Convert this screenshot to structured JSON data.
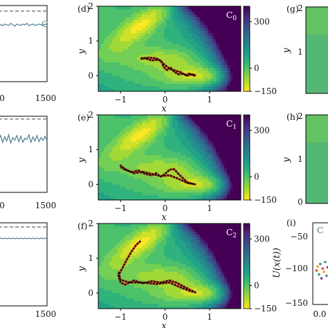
{
  "chart_data": [
    {
      "type": "line",
      "panel": "left-top",
      "title": "",
      "xlabel": "",
      "ylabel": "",
      "xlim": [
        0,
        1500
      ],
      "x_ticks": [
        "0",
        "1500"
      ],
      "annotation": "C",
      "series": [
        {
          "role": "trace",
          "color": "#4f7f8c",
          "values": [
            0.78,
            0.8,
            0.79,
            0.81,
            0.8,
            0.79,
            0.82,
            0.8,
            0.78,
            0.81,
            0.8,
            0.79,
            0.81,
            0.8,
            0.82,
            0.79,
            0.8,
            0.81,
            0.79,
            0.8,
            0.81,
            0.8,
            0.79,
            0.81,
            0.8
          ]
        },
        {
          "role": "reference",
          "style": "dashed",
          "color": "#666666",
          "value": 0.93
        }
      ]
    },
    {
      "type": "line",
      "panel": "left-middle",
      "title": "",
      "xlabel": "",
      "ylabel": "",
      "xlim": [
        0,
        1500
      ],
      "x_ticks": [
        "0",
        "1500"
      ],
      "series": [
        {
          "role": "trace",
          "color": "#4f7f8c",
          "values": [
            0.74,
            0.8,
            0.7,
            0.78,
            0.72,
            0.81,
            0.69,
            0.77,
            0.73,
            0.8,
            0.71,
            0.79,
            0.7,
            0.76,
            0.74,
            0.81,
            0.7,
            0.78,
            0.72,
            0.8,
            0.71,
            0.77,
            0.73,
            0.79,
            0.72
          ]
        },
        {
          "role": "reference",
          "style": "dashed",
          "color": "#666666",
          "value": 0.93
        }
      ]
    },
    {
      "type": "line",
      "panel": "left-bottom",
      "title": "",
      "xlabel": "",
      "ylabel": "",
      "xlim": [
        0,
        1500
      ],
      "x_ticks": [
        "0",
        "1500"
      ],
      "series": [
        {
          "role": "trace",
          "color": "#4f7f8c",
          "values": [
            0.86,
            0.87,
            0.86,
            0.87,
            0.86,
            0.87,
            0.86,
            0.87,
            0.86,
            0.87,
            0.86,
            0.87,
            0.86,
            0.87,
            0.86,
            0.87,
            0.86,
            0.87,
            0.86,
            0.87,
            0.86,
            0.87,
            0.86,
            0.87,
            0.86
          ]
        },
        {
          "role": "reference",
          "style": "dashed",
          "color": "#666666",
          "value": 0.93
        }
      ]
    },
    {
      "type": "heatmap",
      "panel_label": "(d)",
      "annotation": "C0",
      "xlabel": "x",
      "ylabel": "y",
      "xlim": [
        -1.5,
        1.7
      ],
      "ylim": [
        -0.45,
        2.0
      ],
      "x_ticks": [
        "−1",
        "0",
        "1"
      ],
      "y_ticks": [
        "0",
        "1",
        "2"
      ],
      "colorbar": {
        "min": -150,
        "max": 400,
        "ticks": [
          "300",
          "0",
          "−150"
        ],
        "colors": [
          "#fde725",
          "#b5de2b",
          "#6ece58",
          "#35b779",
          "#1f9e89",
          "#26828e",
          "#31688e",
          "#3e4989",
          "#482878",
          "#440154"
        ]
      },
      "trajectory": {
        "x": [
          -0.55,
          -0.35,
          -0.2,
          -0.08,
          -0.05,
          0.0,
          0.05,
          0.12,
          0.2,
          0.3,
          0.4,
          0.5,
          0.6,
          0.68,
          0.65,
          0.55,
          0.45,
          0.35,
          0.25,
          0.1,
          -0.05,
          -0.15,
          -0.3,
          -0.45,
          -0.55
        ],
        "y": [
          0.5,
          0.52,
          0.5,
          0.42,
          0.3,
          0.2,
          0.16,
          0.24,
          0.12,
          0.04,
          0.06,
          0.0,
          0.04,
          0.02,
          0.0,
          0.06,
          0.02,
          0.1,
          0.14,
          0.2,
          0.36,
          0.46,
          0.44,
          0.5,
          0.48
        ]
      }
    },
    {
      "type": "heatmap",
      "panel_label": "(e)",
      "annotation": "C1",
      "xlabel": "x",
      "ylabel": "y",
      "xlim": [
        -1.5,
        1.7
      ],
      "ylim": [
        -0.45,
        2.0
      ],
      "x_ticks": [
        "−1",
        "0",
        "1"
      ],
      "y_ticks": [
        "0",
        "1",
        "2"
      ],
      "colorbar": {
        "min": -150,
        "max": 400,
        "ticks": [
          "300",
          "0",
          "−150"
        ],
        "colors": [
          "#fde725",
          "#b5de2b",
          "#6ece58",
          "#35b779",
          "#1f9e89",
          "#26828e",
          "#31688e",
          "#3e4989",
          "#482878",
          "#440154"
        ]
      },
      "trajectory": {
        "x": [
          -1.0,
          -0.9,
          -0.75,
          -0.6,
          -0.45,
          -0.3,
          -0.2,
          -0.1,
          0.0,
          0.1,
          0.2,
          0.3,
          0.4,
          0.5,
          0.6,
          0.68,
          0.5,
          0.3,
          0.1,
          -0.1,
          -0.3,
          -0.5,
          -0.7,
          -0.9,
          -1.02
        ],
        "y": [
          0.5,
          0.42,
          0.35,
          0.4,
          0.3,
          0.26,
          0.32,
          0.22,
          0.3,
          0.42,
          0.44,
          0.3,
          0.18,
          0.06,
          0.02,
          0.0,
          0.04,
          0.16,
          0.26,
          0.24,
          0.3,
          0.36,
          0.32,
          0.44,
          0.56
        ]
      }
    },
    {
      "type": "heatmap",
      "panel_label": "(f)",
      "annotation": "C2",
      "xlabel": "x",
      "ylabel": "y",
      "xlim": [
        -1.5,
        1.7
      ],
      "ylim": [
        -0.45,
        2.0
      ],
      "x_ticks": [
        "−1",
        "0",
        "1"
      ],
      "y_ticks": [
        "0",
        "1",
        "2"
      ],
      "colorbar": {
        "min": -150,
        "max": 400,
        "ticks": [
          "300",
          "0",
          "−150"
        ],
        "colors": [
          "#fde725",
          "#b5de2b",
          "#6ece58",
          "#35b779",
          "#1f9e89",
          "#26828e",
          "#31688e",
          "#3e4989",
          "#482878",
          "#440154"
        ]
      },
      "trajectory": {
        "x": [
          -0.55,
          -0.65,
          -0.75,
          -0.85,
          -0.95,
          -1.05,
          -1.0,
          -0.9,
          -0.7,
          -0.5,
          -0.3,
          -0.1,
          0.1,
          0.25,
          0.4,
          0.55,
          0.68,
          0.55,
          0.35,
          0.1,
          -0.2,
          -0.5,
          -0.8,
          -1.0,
          -1.05
        ],
        "y": [
          1.5,
          1.38,
          1.2,
          0.98,
          0.74,
          0.5,
          0.3,
          0.24,
          0.36,
          0.28,
          0.34,
          0.3,
          0.36,
          0.3,
          0.2,
          0.1,
          0.02,
          0.06,
          0.16,
          0.3,
          0.26,
          0.3,
          0.3,
          0.38,
          0.62
        ]
      }
    },
    {
      "type": "heatmap",
      "panel_label": "(g)",
      "panel": "right-top",
      "y_ticks": [
        "2",
        "1"
      ],
      "ylabel": "y"
    },
    {
      "type": "heatmap",
      "panel_label": "(h)",
      "panel": "right-middle",
      "y_ticks": [
        "2",
        "1",
        "0"
      ],
      "ylabel": "y"
    },
    {
      "type": "scatter",
      "panel_label": "(i)",
      "panel": "right-bottom",
      "annotation": "C",
      "ylabel": "U(x(t))",
      "ylim": [
        -150,
        -25
      ],
      "y_ticks": [
        "−50",
        "−100",
        "−150"
      ],
      "x_ticks": [
        "0.0"
      ],
      "points": {
        "x": [
          0.06,
          0.08,
          0.1,
          0.12,
          0.14,
          0.16,
          0.18,
          0.2,
          0.22,
          0.24
        ],
        "y": [
          -98,
          -92,
          -104,
          -88,
          -110,
          -95,
          -100,
          -85,
          -106,
          -93
        ]
      }
    }
  ]
}
